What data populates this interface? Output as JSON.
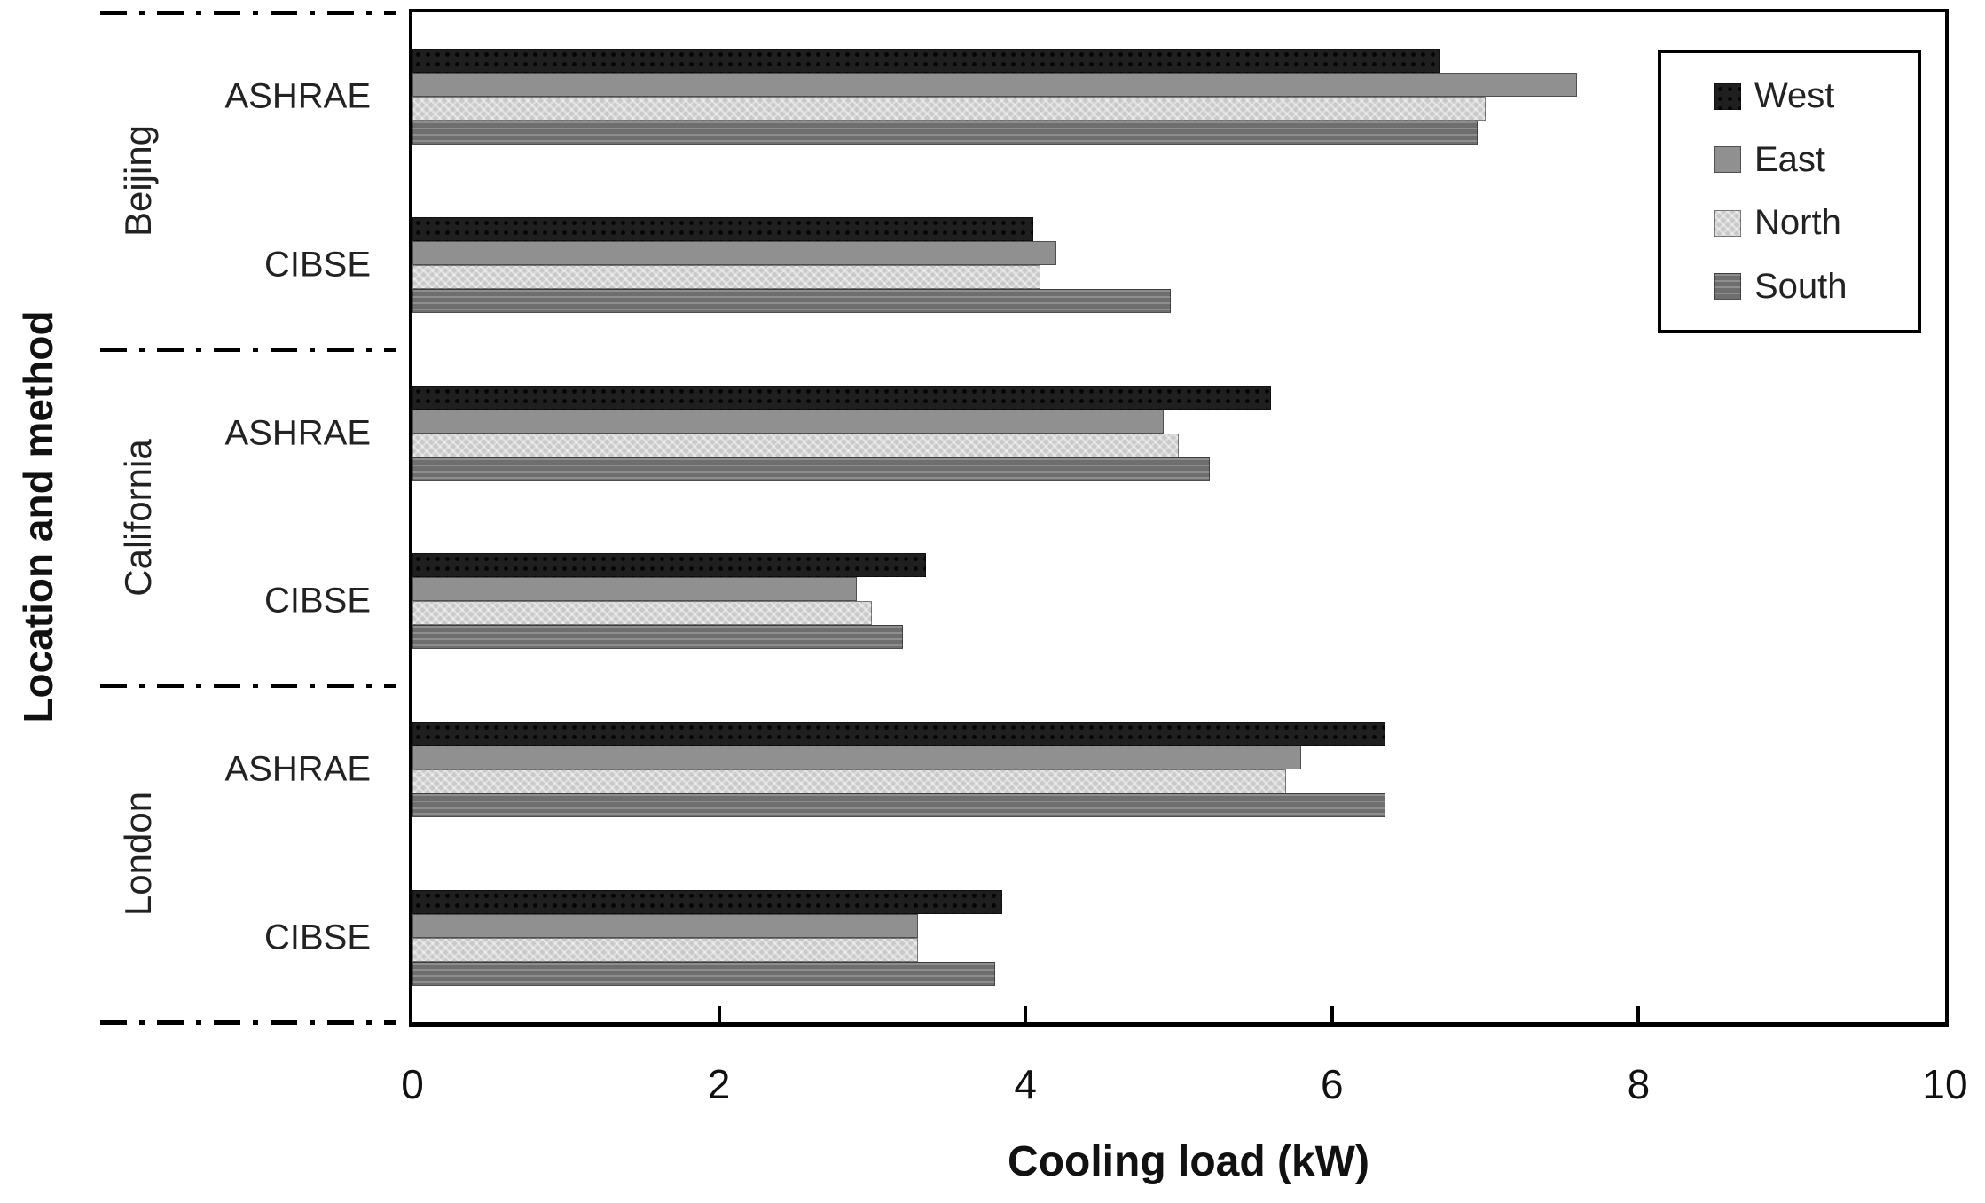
{
  "figure": {
    "description": "Horizontal grouped bar chart of cooling load by location and calculation method for four facade orientations"
  },
  "chart_data": {
    "type": "bar",
    "orientation": "horizontal",
    "title": "",
    "xlabel": "Cooling load (kW)",
    "ylabel": "Location and method",
    "xlim": [
      0,
      10
    ],
    "xticks": [
      0,
      2,
      4,
      6,
      8,
      10
    ],
    "grid": false,
    "groups": [
      "Beijing",
      "California",
      "London"
    ],
    "clusters": [
      {
        "location": "Beijing",
        "method": "ASHRAE"
      },
      {
        "location": "Beijing",
        "method": "CIBSE"
      },
      {
        "location": "California",
        "method": "ASHRAE"
      },
      {
        "location": "California",
        "method": "CIBSE"
      },
      {
        "location": "London",
        "method": "ASHRAE"
      },
      {
        "location": "London",
        "method": "CIBSE"
      }
    ],
    "series": [
      {
        "name": "West",
        "color": "#1f1f1f",
        "pattern": "dots",
        "values": [
          6.7,
          4.05,
          5.6,
          3.35,
          6.35,
          3.85
        ]
      },
      {
        "name": "East",
        "color": "#909090",
        "pattern": "solid",
        "values": [
          7.6,
          4.2,
          4.9,
          2.9,
          5.8,
          3.3
        ]
      },
      {
        "name": "North",
        "color": "#c9c9c9",
        "pattern": "checker",
        "values": [
          7.0,
          4.1,
          5.0,
          3.0,
          5.7,
          3.3
        ]
      },
      {
        "name": "South",
        "color": "#6e6e6e",
        "pattern": "lines",
        "values": [
          6.95,
          4.95,
          5.2,
          3.2,
          6.35,
          3.8
        ]
      }
    ],
    "legend": {
      "position": "top-right",
      "entries": [
        "West",
        "East",
        "North",
        "South"
      ]
    }
  }
}
